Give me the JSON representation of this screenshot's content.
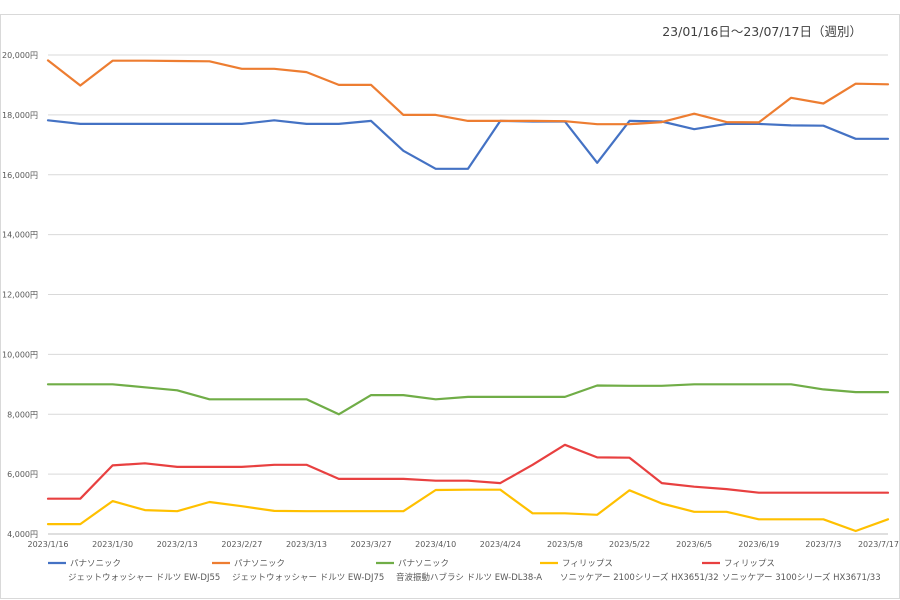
{
  "chart_data": {
    "type": "line",
    "title": "23/01/16日～23/07/17日（週別）",
    "xlabel": "",
    "ylabel": "",
    "ylim": [
      4000,
      20000
    ],
    "y_ticks": [
      4000,
      6000,
      8000,
      10000,
      12000,
      14000,
      16000,
      18000,
      20000
    ],
    "y_tick_labels": [
      "4,000円",
      "6,000円",
      "8,000円",
      "10,000円",
      "12,000円",
      "14,000円",
      "16,000円",
      "18,000円",
      "20,000円"
    ],
    "grid": true,
    "legend_position": "bottom",
    "x": [
      "2023/1/16",
      "2023/1/23",
      "2023/1/30",
      "2023/2/6",
      "2023/2/13",
      "2023/2/20",
      "2023/2/27",
      "2023/3/6",
      "2023/3/13",
      "2023/3/20",
      "2023/3/27",
      "2023/4/3",
      "2023/4/10",
      "2023/4/17",
      "2023/4/24",
      "2023/5/1",
      "2023/5/8",
      "2023/5/15",
      "2023/5/22",
      "2023/5/29",
      "2023/6/5",
      "2023/6/12",
      "2023/6/19",
      "2023/6/26",
      "2023/7/3",
      "2023/7/10",
      "2023/7/17"
    ],
    "x_tick_labels": [
      "2023/1/16",
      "2023/1/30",
      "2023/2/13",
      "2023/2/27",
      "2023/3/13",
      "2023/3/27",
      "2023/4/10",
      "2023/4/24",
      "2023/5/8",
      "2023/5/22",
      "2023/6/5",
      "2023/6/19",
      "2023/7/3",
      "2023/7/17"
    ],
    "series": [
      {
        "name": "パナソニック",
        "product": "ジェットウォッシャー ドルツ EW-DJ55",
        "color": "#4472C4",
        "values": [
          17820,
          17700,
          17700,
          17700,
          17700,
          17700,
          17700,
          17820,
          17700,
          17700,
          17800,
          16800,
          16200,
          16200,
          17800,
          17780,
          17780,
          16400,
          17800,
          17780,
          17520,
          17700,
          17700,
          17650,
          17640,
          17200,
          17200
        ]
      },
      {
        "name": "パナソニック",
        "product": "ジェットウォッシャー ドルツ EW-DJ75",
        "color": "#ED7D31",
        "values": [
          19820,
          18980,
          19810,
          19810,
          19800,
          19790,
          19540,
          19540,
          19430,
          19000,
          19000,
          18000,
          18000,
          17800,
          17800,
          17800,
          17790,
          17690,
          17690,
          17760,
          18040,
          17760,
          17750,
          18570,
          18380,
          19040,
          19020
        ]
      },
      {
        "name": "パナソニック",
        "product": "音波振動ハブラシ ドルツ EW-DL38-A",
        "color": "#70AD47",
        "values": [
          9000,
          9000,
          9000,
          8900,
          8800,
          8500,
          8500,
          8500,
          8500,
          8000,
          8640,
          8640,
          8500,
          8580,
          8580,
          8580,
          8580,
          8960,
          8950,
          8950,
          9000,
          9000,
          9000,
          9000,
          8830,
          8740,
          8740
        ]
      },
      {
        "name": "フィリップス",
        "product": "ソニッケアー 2100シリーズ HX3651/32",
        "color": "#FFC000",
        "values": [
          4330,
          4330,
          5100,
          4800,
          4760,
          5070,
          4930,
          4770,
          4760,
          4760,
          4760,
          4760,
          5470,
          5480,
          5480,
          4690,
          4690,
          4640,
          5460,
          5020,
          4740,
          4740,
          4490,
          4490,
          4490,
          4100,
          4490
        ]
      },
      {
        "name": "フィリップス",
        "product": "ソニッケアー 3100シリーズ HX3671/33",
        "color": "#E84040",
        "values": [
          5180,
          5180,
          6290,
          6360,
          6240,
          6240,
          6240,
          6310,
          6310,
          5840,
          5840,
          5840,
          5780,
          5780,
          5700,
          6310,
          6980,
          6560,
          6550,
          5700,
          5580,
          5500,
          5380,
          5380,
          5380,
          5380,
          5380
        ]
      }
    ]
  }
}
